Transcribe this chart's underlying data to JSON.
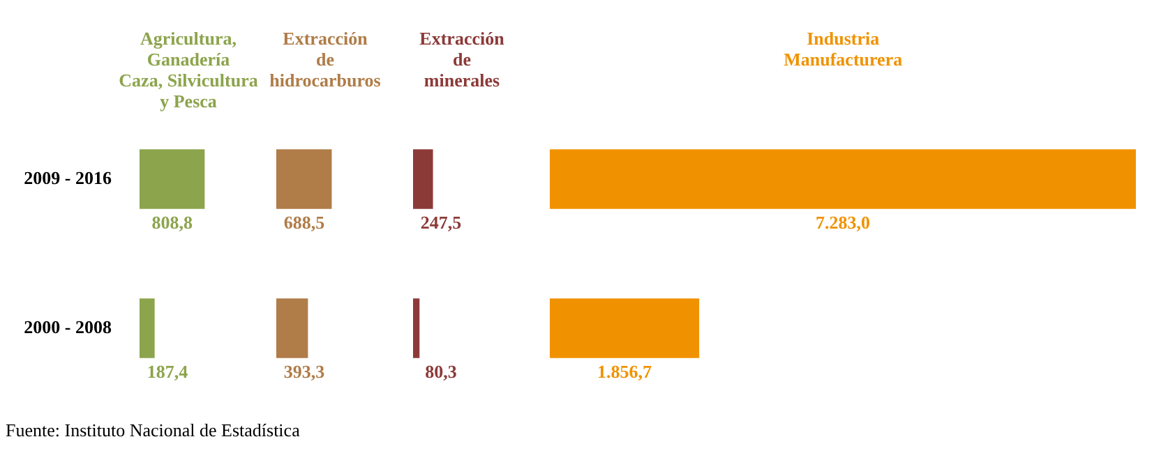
{
  "chart_data": [
    {
      "type": "bar",
      "orientation": "horizontal",
      "title": "Agricultura,\nGanadería\nCaza, Silvicultura\ny Pesca",
      "categories": [
        "2009 - 2016",
        "2000 - 2008"
      ],
      "values": [
        808.8,
        187.4
      ],
      "value_labels": [
        "808,8",
        "187,4"
      ],
      "color": "#8ca44c",
      "tick_labels": "y",
      "annotations": [
        "Fuente: Instituto Nacional de Estadística"
      ]
    },
    {
      "type": "bar",
      "orientation": "horizontal",
      "title": "Extracción\nde\nhidrocarburos",
      "categories": [
        null,
        null
      ],
      "values": [
        688.5,
        393.3
      ],
      "value_labels": [
        "688,5",
        "393,3"
      ],
      "color": "#b07c48",
      "tick_labels": false
    },
    {
      "type": "bar",
      "orientation": "horizontal",
      "title": "Extracción\nde\nminerales",
      "categories": [
        null,
        null
      ],
      "values": [
        247.5,
        80.3
      ],
      "value_labels": [
        "247,5",
        "80,3"
      ],
      "color": "#8c3a38",
      "tick_labels": false
    },
    {
      "type": "bar",
      "orientation": "horizontal",
      "title": "Industria\nManufacturera",
      "categories": [
        null,
        null
      ],
      "values": [
        7283.0,
        1856.7
      ],
      "value_labels": [
        "7.283,0",
        "1.856,7"
      ],
      "color": "#f09200",
      "tick_labels": false
    }
  ]
}
